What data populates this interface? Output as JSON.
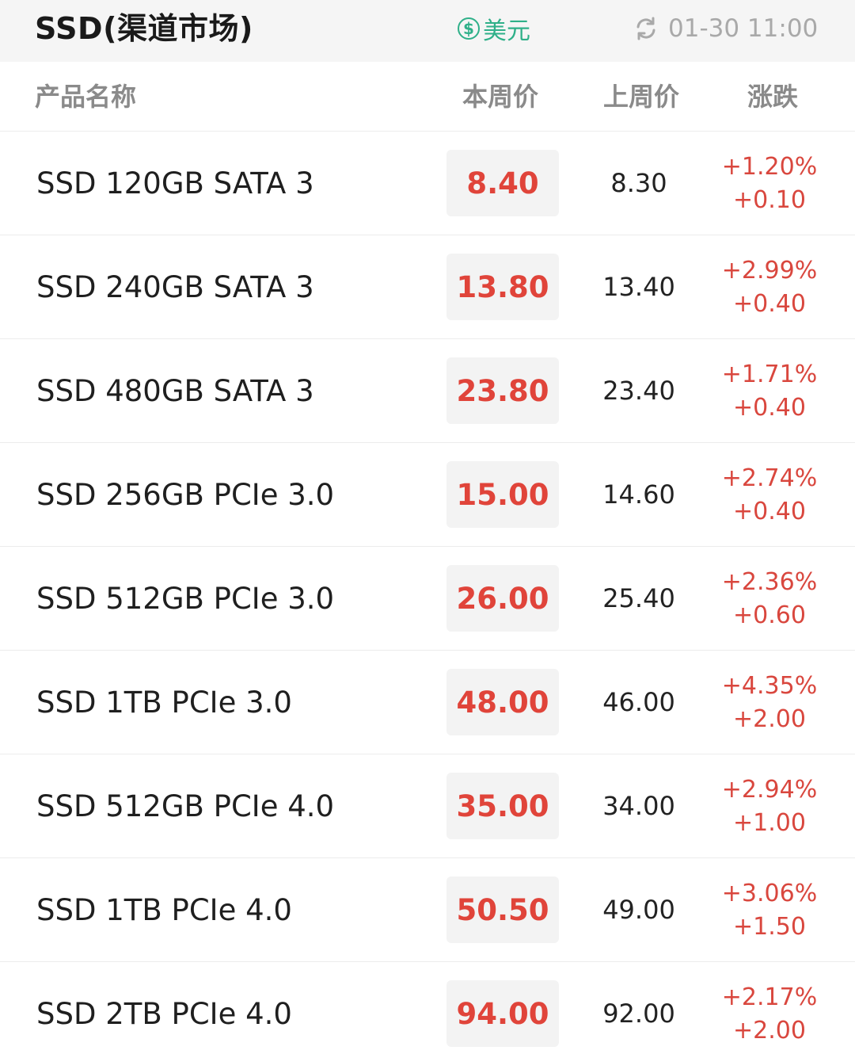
{
  "header": {
    "title": "SSD(渠道市场)",
    "currency_icon": "dollar-coin-icon",
    "currency_label": "美元",
    "refresh_icon": "refresh-icon",
    "updated_time": "01-30 11:00"
  },
  "columns": {
    "name": "产品名称",
    "this_week": "本周价",
    "last_week": "上周价",
    "change": "涨跌"
  },
  "colors": {
    "up": "#e0443a",
    "accent_green": "#2fb089"
  },
  "rows": [
    {
      "name": "SSD 120GB SATA 3",
      "this_week": "8.40",
      "last_week": "8.30",
      "pct": "+1.20%",
      "diff": "+0.10"
    },
    {
      "name": "SSD 240GB SATA 3",
      "this_week": "13.80",
      "last_week": "13.40",
      "pct": "+2.99%",
      "diff": "+0.40"
    },
    {
      "name": "SSD 480GB SATA 3",
      "this_week": "23.80",
      "last_week": "23.40",
      "pct": "+1.71%",
      "diff": "+0.40"
    },
    {
      "name": "SSD 256GB PCIe 3.0",
      "this_week": "15.00",
      "last_week": "14.60",
      "pct": "+2.74%",
      "diff": "+0.40"
    },
    {
      "name": "SSD 512GB PCIe 3.0",
      "this_week": "26.00",
      "last_week": "25.40",
      "pct": "+2.36%",
      "diff": "+0.60"
    },
    {
      "name": "SSD 1TB PCIe 3.0",
      "this_week": "48.00",
      "last_week": "46.00",
      "pct": "+4.35%",
      "diff": "+2.00"
    },
    {
      "name": "SSD 512GB PCIe 4.0",
      "this_week": "35.00",
      "last_week": "34.00",
      "pct": "+2.94%",
      "diff": "+1.00"
    },
    {
      "name": "SSD 1TB PCIe 4.0",
      "this_week": "50.50",
      "last_week": "49.00",
      "pct": "+3.06%",
      "diff": "+1.50"
    },
    {
      "name": "SSD 2TB PCIe 4.0",
      "this_week": "94.00",
      "last_week": "92.00",
      "pct": "+2.17%",
      "diff": "+2.00"
    }
  ]
}
